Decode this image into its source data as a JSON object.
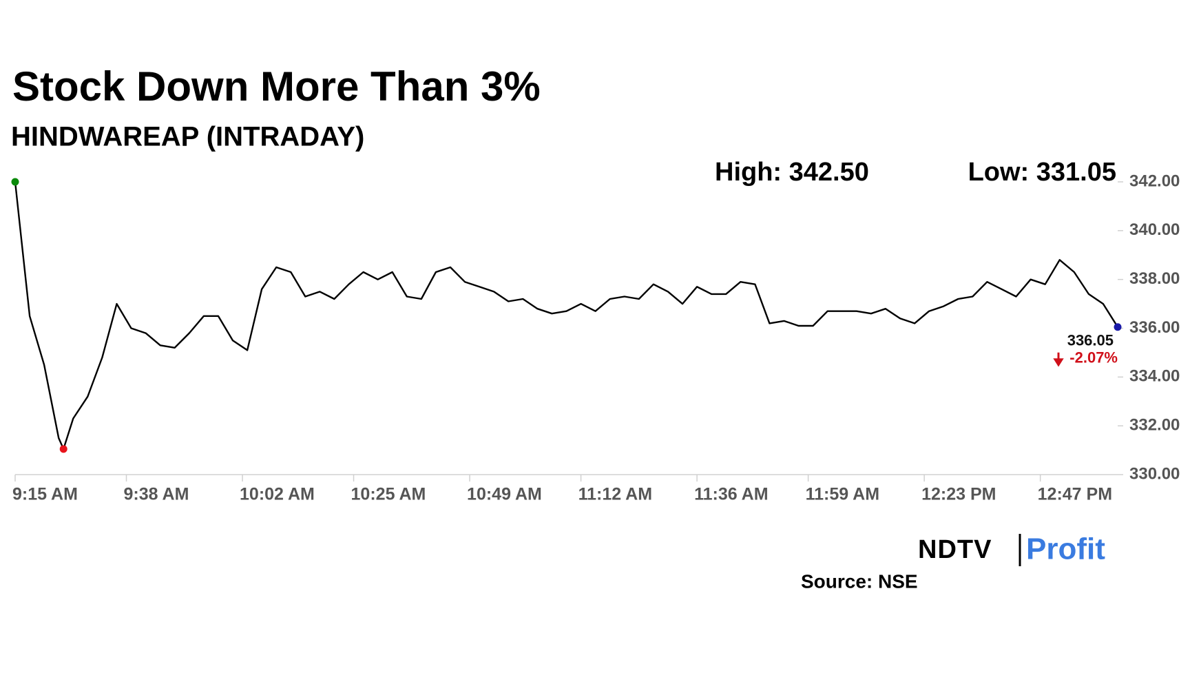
{
  "chart_data": {
    "type": "line",
    "title": "Stock Down More Than 3%",
    "subtitle": "HINDWAREAP (INTRADAY)",
    "annotations": {
      "high": "High: 342.50",
      "low": "Low: 331.05",
      "last": "336.05",
      "change": "-2.07%"
    },
    "source": "Source: NSE",
    "logo": {
      "left": "NDTV",
      "right": "Profit"
    },
    "color": "#000000",
    "start_color": "#0a8a0a",
    "low_color": "#e8141c",
    "end_color": "#1a1aa8",
    "change_color": "#d0101a",
    "low_index": 4,
    "x": [
      "9:15 AM",
      "9:18 AM",
      "9:21 AM",
      "9:24 AM",
      "9:25 AM",
      "9:27 AM",
      "9:30 AM",
      "9:33 AM",
      "9:36 AM",
      "9:39 AM",
      "9:42 AM",
      "9:45 AM",
      "9:48 AM",
      "9:51 AM",
      "9:54 AM",
      "9:57 AM",
      "10:00 AM",
      "10:03 AM",
      "10:06 AM",
      "10:09 AM",
      "10:12 AM",
      "10:15 AM",
      "10:18 AM",
      "10:21 AM",
      "10:24 AM",
      "10:27 AM",
      "10:30 AM",
      "10:33 AM",
      "10:36 AM",
      "10:39 AM",
      "10:42 AM",
      "10:45 AM",
      "10:48 AM",
      "10:51 AM",
      "10:54 AM",
      "10:57 AM",
      "11:00 AM",
      "11:03 AM",
      "11:06 AM",
      "11:09 AM",
      "11:12 AM",
      "11:15 AM",
      "11:18 AM",
      "11:21 AM",
      "11:24 AM",
      "11:27 AM",
      "11:30 AM",
      "11:33 AM",
      "11:36 AM",
      "11:39 AM",
      "11:42 AM",
      "11:45 AM",
      "11:48 AM",
      "11:51 AM",
      "11:54 AM",
      "11:57 AM",
      "12:00 PM",
      "12:03 PM",
      "12:06 PM",
      "12:09 PM",
      "12:12 PM",
      "12:15 PM",
      "12:18 PM",
      "12:21 PM",
      "12:24 PM",
      "12:27 PM",
      "12:30 PM",
      "12:33 PM",
      "12:36 PM",
      "12:39 PM",
      "12:42 PM",
      "12:45 PM",
      "12:48 PM",
      "12:51 PM",
      "12:54 PM",
      "12:57 PM",
      "1:00 PM",
      "1:03 PM"
    ],
    "values": [
      342.0,
      336.5,
      334.5,
      331.5,
      331.05,
      332.3,
      333.2,
      334.8,
      337.0,
      336.0,
      335.8,
      335.3,
      335.2,
      335.8,
      336.5,
      336.5,
      335.5,
      335.1,
      337.6,
      338.5,
      338.3,
      337.3,
      337.5,
      337.2,
      337.8,
      338.3,
      338.0,
      338.3,
      337.3,
      337.2,
      338.3,
      338.5,
      337.9,
      337.7,
      337.5,
      337.1,
      337.2,
      336.8,
      336.6,
      336.7,
      337.0,
      336.7,
      337.2,
      337.3,
      337.2,
      337.8,
      337.5,
      337.0,
      337.7,
      337.4,
      337.4,
      337.9,
      337.8,
      336.2,
      336.3,
      336.1,
      336.1,
      336.7,
      336.7,
      336.7,
      336.6,
      336.8,
      336.4,
      336.2,
      336.7,
      336.9,
      337.2,
      337.3,
      337.9,
      337.6,
      337.3,
      338.0,
      337.8,
      338.8,
      338.3,
      337.4,
      337.0,
      336.05
    ],
    "xlim": [
      "9:15 AM",
      "1:03 PM"
    ],
    "xticks": [
      "9:15 AM",
      "9:38 AM",
      "10:02 AM",
      "10:25 AM",
      "10:49 AM",
      "11:12 AM",
      "11:36 AM",
      "11:59 AM",
      "12:23 PM",
      "12:47 PM"
    ],
    "ylim": [
      330,
      342
    ],
    "yticks": [
      {
        "value": 330,
        "label": "330.00"
      },
      {
        "value": 332,
        "label": "332.00"
      },
      {
        "value": 334,
        "label": "334.00"
      },
      {
        "value": 336,
        "label": "336.00"
      },
      {
        "value": 338,
        "label": "338.00"
      },
      {
        "value": 340,
        "label": "340.00"
      },
      {
        "value": 342,
        "label": "342.00"
      }
    ],
    "grid": false
  }
}
